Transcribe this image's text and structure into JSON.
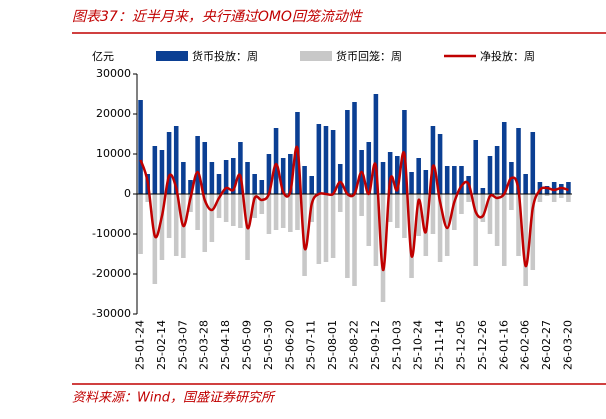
{
  "chart_data": {
    "type": "bar_line",
    "title": "图表37：近半月来，央行通过OMO回笼流动性",
    "y_label": "亿元",
    "source": "资料来源：Wind，国盛证券研究所",
    "categories": [
      "25-01-24",
      null,
      null,
      "25-02-14",
      null,
      null,
      "25-03-07",
      null,
      null,
      "25-03-28",
      null,
      null,
      "25-04-18",
      null,
      null,
      "25-05-09",
      null,
      null,
      "25-05-30",
      null,
      null,
      "25-06-20",
      null,
      null,
      "25-07-11",
      null,
      null,
      "25-08-01",
      null,
      null,
      "25-08-22",
      null,
      null,
      "25-09-12",
      null,
      null,
      "25-10-03",
      null,
      null,
      "25-10-24",
      null,
      null,
      "25-11-14",
      null,
      null,
      "25-12-05",
      null,
      null,
      "25-12-26",
      null,
      null,
      "26-01-16",
      null,
      null,
      "26-02-06",
      null,
      null,
      "26-02-27",
      null,
      null,
      "26-03-20"
    ],
    "ylim": [
      -30000,
      30000
    ],
    "yticks": [
      -30000,
      -20000,
      -10000,
      0,
      10000,
      20000,
      30000
    ],
    "series": [
      {
        "name": "货币投放：周",
        "kind": "bar",
        "color": "#0b3f93",
        "values": [
          23500,
          5000,
          12000,
          11000,
          15500,
          17000,
          8000,
          3500,
          14500,
          13000,
          8000,
          5000,
          8500,
          9000,
          13000,
          8000,
          5000,
          3500,
          10000,
          16500,
          9000,
          10000,
          20500,
          7000,
          4500,
          17500,
          17000,
          16000,
          7500,
          21000,
          23000,
          11000,
          13000,
          25000,
          8000,
          10500,
          9500,
          21000,
          5500,
          9000,
          6000,
          17000,
          15000,
          7000,
          7000,
          7000,
          4500,
          13500,
          1500,
          9500,
          12000,
          18000,
          8000,
          16500,
          5000,
          15500,
          3000,
          2000,
          3000,
          2500,
          3000
        ]
      },
      {
        "name": "货币回笼：周",
        "kind": "bar",
        "color": "#c8c8c8",
        "values": [
          -15000,
          -2000,
          -22500,
          -16500,
          -11000,
          -15500,
          -16000,
          -4500,
          -9000,
          -14500,
          -12000,
          -6000,
          -7000,
          -8000,
          -8500,
          -16500,
          -6000,
          -5000,
          -10000,
          -9000,
          -8500,
          -9500,
          -9000,
          -20500,
          -7000,
          -17500,
          -17000,
          -16000,
          -4500,
          -21000,
          -23000,
          -5500,
          -13000,
          -18000,
          -27000,
          -7000,
          -8500,
          -11000,
          -21000,
          -10500,
          -15500,
          -10000,
          -17000,
          -15500,
          -9000,
          -5000,
          -2000,
          -18000,
          -7000,
          -10000,
          -13000,
          -18000,
          -4000,
          -15500,
          -23000,
          -19000,
          -2000,
          -500,
          -2000,
          -1000,
          -2000
        ]
      },
      {
        "name": "净投放：周",
        "kind": "line",
        "color": "#c00000",
        "values": [
          8500,
          3000,
          -10500,
          -5500,
          4500,
          1500,
          -8000,
          -1000,
          5500,
          -1500,
          -4000,
          -1000,
          1500,
          1000,
          4500,
          -8500,
          -1000,
          -1500,
          0,
          7500,
          500,
          500,
          11500,
          -13500,
          -2500,
          0,
          0,
          0,
          3000,
          0,
          0,
          5500,
          0,
          7000,
          -19000,
          3500,
          1000,
          10000,
          -15500,
          -1500,
          -9500,
          7000,
          -2000,
          -8500,
          -2000,
          2000,
          2500,
          -4500,
          -5500,
          -500,
          -1000,
          0,
          4000,
          1000,
          -18000,
          -3500,
          1000,
          1500,
          1000,
          1500,
          1000
        ]
      }
    ]
  }
}
